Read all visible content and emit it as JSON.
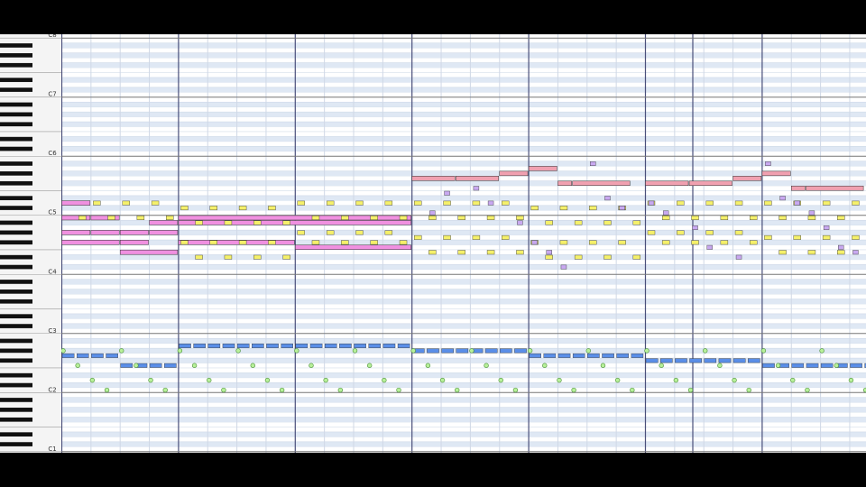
{
  "window": {
    "type": "piano-roll",
    "octave_labels": [
      "C8",
      "C7",
      "C6",
      "C5",
      "C4",
      "C3",
      "C2",
      "C1"
    ]
  },
  "colors": {
    "grid_bg": "#ffffff",
    "black_key_row": "#dfe8f4",
    "grid_line": "#c8d4e4",
    "octave_line": "#777777",
    "beat_line": "#d0d8e6",
    "bar_line": "#4a4f7a",
    "track_pink_lead": "#f0a0b0",
    "track_magenta": "#f090e0",
    "track_yellow": "#f5f06a",
    "track_lavender": "#c8a8f0",
    "track_blue": "#5a8ee8",
    "track_green": "#b8f09a",
    "note_border": "#333333"
  },
  "icons": [
    "piano-keyboard-icon"
  ],
  "tracks": [
    {
      "id": "lead",
      "color_key": "track_pink_lead",
      "notes": [
        {
          "p": 79,
          "s": 24,
          "l": 3
        },
        {
          "p": 79,
          "s": 27,
          "l": 3
        },
        {
          "p": 80,
          "s": 30,
          "l": 2
        },
        {
          "p": 81,
          "s": 32,
          "l": 2
        },
        {
          "p": 78,
          "s": 34,
          "l": 1
        },
        {
          "p": 78,
          "s": 35,
          "l": 4
        },
        {
          "p": 78,
          "s": 40,
          "l": 3
        },
        {
          "p": 78,
          "s": 43,
          "l": 3
        },
        {
          "p": 79,
          "s": 46,
          "l": 2
        },
        {
          "p": 80,
          "s": 48,
          "l": 2
        },
        {
          "p": 77,
          "s": 50,
          "l": 1
        },
        {
          "p": 77,
          "s": 51,
          "l": 4
        }
      ]
    },
    {
      "id": "strings",
      "color_key": "track_magenta",
      "notes": [
        {
          "p": 74,
          "s": 0,
          "l": 2
        },
        {
          "p": 71,
          "s": 0,
          "l": 2
        },
        {
          "p": 68,
          "s": 0,
          "l": 2
        },
        {
          "p": 66,
          "s": 0,
          "l": 4
        },
        {
          "p": 71,
          "s": 2,
          "l": 2
        },
        {
          "p": 68,
          "s": 2,
          "l": 2
        },
        {
          "p": 66,
          "s": 4,
          "l": 2
        },
        {
          "p": 68,
          "s": 4,
          "l": 2
        },
        {
          "p": 64,
          "s": 4,
          "l": 4
        },
        {
          "p": 70,
          "s": 6,
          "l": 2
        },
        {
          "p": 68,
          "s": 6,
          "l": 2
        },
        {
          "p": 71,
          "s": 8,
          "l": 16
        },
        {
          "p": 70,
          "s": 8,
          "l": 16
        },
        {
          "p": 66,
          "s": 8,
          "l": 8
        },
        {
          "p": 65,
          "s": 16,
          "l": 8
        }
      ]
    }
  ]
}
